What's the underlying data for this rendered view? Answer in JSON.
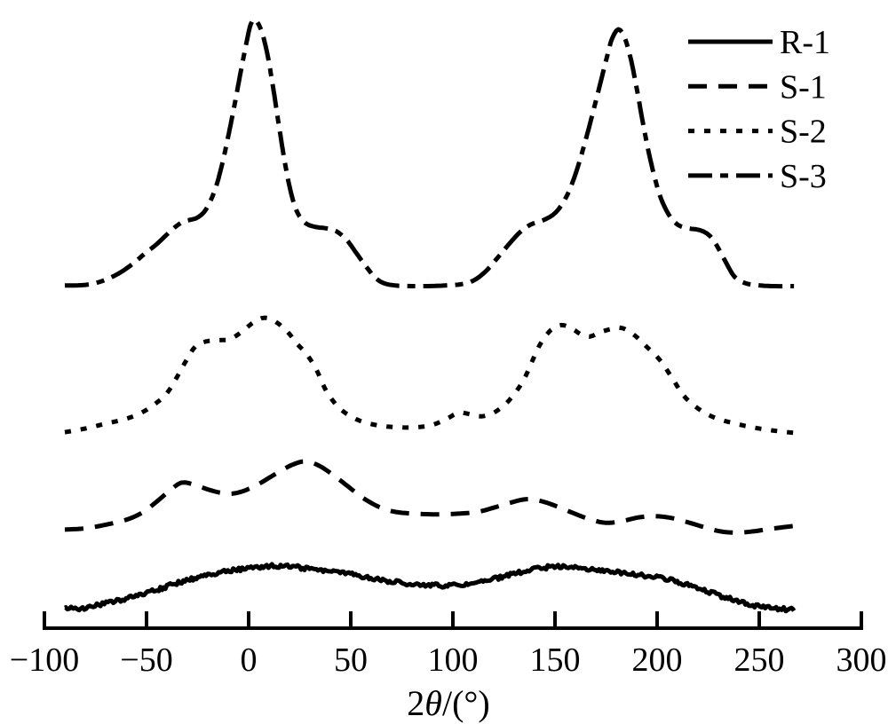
{
  "figure": {
    "background_color": "#ffffff",
    "ink_color": "#000000",
    "title": ""
  },
  "chart_data": {
    "type": "line",
    "title": "",
    "xlabel": "2θ/(°)",
    "xlabel_parts": [
      {
        "text": "2",
        "italic": false
      },
      {
        "text": "θ",
        "italic": true
      },
      {
        "text": "/(°)",
        "italic": false
      }
    ],
    "ylabel": "",
    "xlim": [
      -100,
      300
    ],
    "x_ticks": [
      -100,
      -50,
      0,
      50,
      100,
      150,
      200,
      250,
      300
    ],
    "x_tick_labels": [
      "−100",
      "−50",
      "0",
      "50",
      "100",
      "150",
      "200",
      "250",
      "300"
    ],
    "y_axis": "none (intensity in arbitrary units, curves vertically offset)",
    "grid": false,
    "legend": {
      "position": "top-right",
      "entries": [
        "R-1",
        "S-1",
        "S-2",
        "S-3"
      ]
    },
    "x_range_of_data": [
      -90,
      267
    ],
    "series": [
      {
        "name": "R-1",
        "line_style": "solid",
        "noise_amplitude": 2.3,
        "points": [
          [
            -90,
            3.4
          ],
          [
            -83,
            3.2
          ],
          [
            -76,
            3.6
          ],
          [
            -68,
            4.2
          ],
          [
            -60,
            4.8
          ],
          [
            -52,
            5.6
          ],
          [
            -44,
            6.4
          ],
          [
            -36,
            7.3
          ],
          [
            -28,
            8.1
          ],
          [
            -20,
            8.8
          ],
          [
            -12,
            9.3
          ],
          [
            -4,
            9.7
          ],
          [
            4,
            10.0
          ],
          [
            14,
            10.2
          ],
          [
            24,
            10.0
          ],
          [
            34,
            9.6
          ],
          [
            44,
            9.2
          ],
          [
            54,
            8.6
          ],
          [
            64,
            8.0
          ],
          [
            74,
            7.5
          ],
          [
            84,
            7.2
          ],
          [
            94,
            7.0
          ],
          [
            104,
            7.1
          ],
          [
            114,
            7.6
          ],
          [
            124,
            8.4
          ],
          [
            134,
            9.3
          ],
          [
            144,
            9.9
          ],
          [
            154,
            10.2
          ],
          [
            164,
            9.9
          ],
          [
            174,
            9.5
          ],
          [
            184,
            9.1
          ],
          [
            194,
            8.6
          ],
          [
            204,
            8.1
          ],
          [
            214,
            7.2
          ],
          [
            224,
            6.1
          ],
          [
            234,
            5.0
          ],
          [
            244,
            4.0
          ],
          [
            252,
            3.5
          ],
          [
            260,
            3.2
          ],
          [
            267,
            3.0
          ]
        ]
      },
      {
        "name": "S-1",
        "line_style": "dashed",
        "noise_amplitude": 0,
        "points": [
          [
            -90,
            16.2
          ],
          [
            -80,
            16.4
          ],
          [
            -70,
            17.0
          ],
          [
            -60,
            17.8
          ],
          [
            -52,
            19.0
          ],
          [
            -45,
            20.8
          ],
          [
            -39,
            22.5
          ],
          [
            -33,
            23.9
          ],
          [
            -27,
            23.6
          ],
          [
            -20,
            22.8
          ],
          [
            -13,
            22.2
          ],
          [
            -8,
            22.1
          ],
          [
            -2,
            22.6
          ],
          [
            5,
            23.7
          ],
          [
            13,
            25.3
          ],
          [
            21,
            26.8
          ],
          [
            28,
            27.4
          ],
          [
            35,
            26.6
          ],
          [
            42,
            25.0
          ],
          [
            49,
            23.2
          ],
          [
            56,
            21.4
          ],
          [
            64,
            19.9
          ],
          [
            72,
            19.1
          ],
          [
            82,
            18.8
          ],
          [
            92,
            18.7
          ],
          [
            102,
            18.8
          ],
          [
            112,
            19.1
          ],
          [
            120,
            19.8
          ],
          [
            128,
            20.6
          ],
          [
            136,
            21.2
          ],
          [
            143,
            20.9
          ],
          [
            151,
            20.0
          ],
          [
            159,
            18.9
          ],
          [
            167,
            17.9
          ],
          [
            175,
            17.3
          ],
          [
            183,
            17.6
          ],
          [
            191,
            18.2
          ],
          [
            199,
            18.4
          ],
          [
            207,
            18.1
          ],
          [
            215,
            17.4
          ],
          [
            223,
            16.6
          ],
          [
            231,
            15.9
          ],
          [
            239,
            15.7
          ],
          [
            247,
            15.9
          ],
          [
            255,
            16.3
          ],
          [
            262,
            16.6
          ],
          [
            267,
            16.8
          ]
        ]
      },
      {
        "name": "S-2",
        "line_style": "dotted",
        "noise_amplitude": 0,
        "points": [
          [
            -90,
            32.2
          ],
          [
            -80,
            32.8
          ],
          [
            -70,
            33.6
          ],
          [
            -61,
            34.3
          ],
          [
            -53,
            35.3
          ],
          [
            -46,
            36.8
          ],
          [
            -40,
            38.6
          ],
          [
            -35,
            41.3
          ],
          [
            -30,
            44.3
          ],
          [
            -26,
            46.3
          ],
          [
            -21,
            47.1
          ],
          [
            -15,
            47.3
          ],
          [
            -9,
            47.5
          ],
          [
            -3,
            48.8
          ],
          [
            3,
            50.4
          ],
          [
            8,
            51.0
          ],
          [
            13,
            50.4
          ],
          [
            19,
            48.7
          ],
          [
            24,
            46.6
          ],
          [
            28,
            45.2
          ],
          [
            33,
            42.6
          ],
          [
            38,
            39.0
          ],
          [
            44,
            36.3
          ],
          [
            51,
            34.6
          ],
          [
            58,
            33.7
          ],
          [
            66,
            33.2
          ],
          [
            74,
            33.0
          ],
          [
            82,
            33.0
          ],
          [
            90,
            33.4
          ],
          [
            97,
            34.4
          ],
          [
            103,
            35.4
          ],
          [
            109,
            35.1
          ],
          [
            114,
            34.8
          ],
          [
            120,
            35.4
          ],
          [
            126,
            36.9
          ],
          [
            131,
            38.9
          ],
          [
            135,
            41.0
          ],
          [
            139,
            44.0
          ],
          [
            143,
            46.8
          ],
          [
            148,
            49.0
          ],
          [
            153,
            49.8
          ],
          [
            158,
            49.3
          ],
          [
            163,
            48.2
          ],
          [
            167,
            47.9
          ],
          [
            172,
            48.6
          ],
          [
            178,
            49.2
          ],
          [
            183,
            49.3
          ],
          [
            189,
            48.1
          ],
          [
            195,
            46.2
          ],
          [
            201,
            44.2
          ],
          [
            207,
            41.3
          ],
          [
            213,
            38.2
          ],
          [
            220,
            36.1
          ],
          [
            228,
            34.6
          ],
          [
            236,
            33.8
          ],
          [
            245,
            33.1
          ],
          [
            254,
            32.6
          ],
          [
            261,
            32.3
          ],
          [
            267,
            32.1
          ]
        ]
      },
      {
        "name": "S-3",
        "line_style": "dash-dot",
        "noise_amplitude": 0,
        "points": [
          [
            -90,
            56.3
          ],
          [
            -80,
            56.4
          ],
          [
            -72,
            57.0
          ],
          [
            -64,
            58.2
          ],
          [
            -57,
            59.8
          ],
          [
            -51,
            61.5
          ],
          [
            -45,
            63.1
          ],
          [
            -39,
            65.0
          ],
          [
            -34,
            66.4
          ],
          [
            -30,
            67.0
          ],
          [
            -26,
            67.3
          ],
          [
            -22,
            68.3
          ],
          [
            -19,
            70.0
          ],
          [
            -16,
            72.5
          ],
          [
            -13,
            76.2
          ],
          [
            -10,
            80.8
          ],
          [
            -7,
            85.8
          ],
          [
            -4,
            91.2
          ],
          [
            -1,
            96.3
          ],
          [
            1,
            99.2
          ],
          [
            3,
            100.0
          ],
          [
            6,
            98.4
          ],
          [
            9,
            94.6
          ],
          [
            12,
            88.8
          ],
          [
            15,
            82.2
          ],
          [
            18,
            76.0
          ],
          [
            21,
            71.2
          ],
          [
            24,
            68.2
          ],
          [
            28,
            66.5
          ],
          [
            33,
            65.9
          ],
          [
            38,
            65.7
          ],
          [
            43,
            65.2
          ],
          [
            48,
            63.8
          ],
          [
            53,
            61.5
          ],
          [
            58,
            59.2
          ],
          [
            62,
            57.6
          ],
          [
            66,
            56.7
          ],
          [
            72,
            56.3
          ],
          [
            80,
            56.2
          ],
          [
            88,
            56.2
          ],
          [
            96,
            56.3
          ],
          [
            104,
            56.5
          ],
          [
            110,
            57.1
          ],
          [
            116,
            58.6
          ],
          [
            122,
            60.9
          ],
          [
            128,
            63.3
          ],
          [
            133,
            65.1
          ],
          [
            138,
            66.3
          ],
          [
            144,
            67.0
          ],
          [
            149,
            67.9
          ],
          [
            153,
            69.4
          ],
          [
            157,
            71.9
          ],
          [
            161,
            75.6
          ],
          [
            165,
            80.2
          ],
          [
            169,
            85.3
          ],
          [
            173,
            90.6
          ],
          [
            176,
            94.6
          ],
          [
            178,
            96.9
          ],
          [
            181,
            98.4
          ],
          [
            184,
            97.1
          ],
          [
            187,
            93.7
          ],
          [
            190,
            88.7
          ],
          [
            193,
            83.1
          ],
          [
            196,
            78.0
          ],
          [
            199,
            73.8
          ],
          [
            202,
            70.5
          ],
          [
            206,
            67.8
          ],
          [
            210,
            66.3
          ],
          [
            215,
            65.7
          ],
          [
            221,
            65.4
          ],
          [
            226,
            64.4
          ],
          [
            230,
            62.4
          ],
          [
            234,
            59.9
          ],
          [
            238,
            57.7
          ],
          [
            243,
            56.7
          ],
          [
            248,
            56.4
          ],
          [
            256,
            56.2
          ],
          [
            267,
            56.2
          ]
        ]
      }
    ]
  }
}
